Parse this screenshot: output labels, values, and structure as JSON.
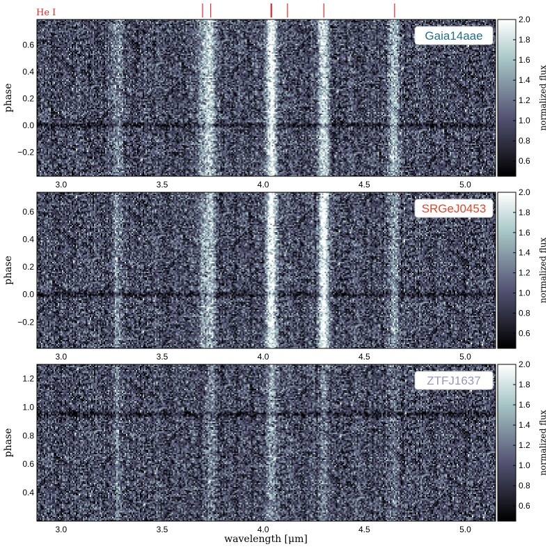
{
  "figure": {
    "xlabel": "wavelength [μm]",
    "ylabel": "phase",
    "colorbar_label": "normalized flux",
    "line_marker_label": "He I",
    "line_marker_color": "#e8262b",
    "colormap": "bone",
    "colorbar_range": [
      0.45,
      2.0
    ]
  },
  "chart_data": [
    {
      "type": "heatmap",
      "title": "",
      "object": "Gaia14aae",
      "object_color": "#1f6f8b",
      "xlabel": "",
      "ylabel": "phase",
      "xlim": [
        2.88,
        5.15
      ],
      "ylim": [
        -0.38,
        0.79
      ],
      "xticks": [
        3.0,
        3.5,
        4.0,
        4.5,
        5.0
      ],
      "xtick_labels": [
        "3.0",
        "3.5",
        "4.0",
        "4.5",
        "5.0"
      ],
      "yticks": [
        -0.2,
        0.0,
        0.2,
        0.4,
        0.6
      ],
      "ytick_labels": [
        "−0.2",
        "0.0",
        "0.2",
        "0.4",
        "0.6"
      ],
      "colorbar_ticks": [
        0.6,
        0.8,
        1.0,
        1.2,
        1.4,
        1.6,
        1.8,
        2.0
      ],
      "colorbar_tick_labels": [
        "0.6",
        "0.8",
        "1.0",
        "1.2",
        "1.4",
        "1.6",
        "1.8",
        "2.0"
      ],
      "emission_lines_um": [
        {
          "center": 3.28,
          "strength": 0.35
        },
        {
          "center": 3.7,
          "strength": 0.4
        },
        {
          "center": 3.74,
          "strength": 0.6
        },
        {
          "center": 4.04,
          "strength": 1.0
        },
        {
          "center": 4.3,
          "strength": 0.8
        },
        {
          "center": 4.65,
          "strength": 0.6
        }
      ],
      "eclipse_phase": 0.0
    },
    {
      "type": "heatmap",
      "title": "",
      "object": "SRGeJ0453",
      "object_color": "#e8442a",
      "xlabel": "",
      "ylabel": "phase",
      "xlim": [
        2.88,
        5.15
      ],
      "ylim": [
        -0.39,
        0.74
      ],
      "xticks": [
        3.0,
        3.5,
        4.0,
        4.5,
        5.0
      ],
      "xtick_labels": [
        "3.0",
        "3.5",
        "4.0",
        "4.5",
        "5.0"
      ],
      "yticks": [
        -0.2,
        0.0,
        0.2,
        0.4,
        0.6
      ],
      "ytick_labels": [
        "−0.2",
        "0.0",
        "0.2",
        "0.4",
        "0.6"
      ],
      "colorbar_ticks": [
        0.6,
        0.8,
        1.0,
        1.2,
        1.4,
        1.6,
        1.8,
        2.0
      ],
      "colorbar_tick_labels": [
        "0.6",
        "0.8",
        "1.0",
        "1.2",
        "1.4",
        "1.6",
        "1.8",
        "2.0"
      ],
      "emission_lines_um": [
        {
          "center": 3.28,
          "strength": 0.35
        },
        {
          "center": 3.7,
          "strength": 0.35
        },
        {
          "center": 3.74,
          "strength": 0.55
        },
        {
          "center": 4.04,
          "strength": 1.0
        },
        {
          "center": 4.3,
          "strength": 1.0
        },
        {
          "center": 4.65,
          "strength": 0.45
        }
      ],
      "eclipse_phase": 0.0
    },
    {
      "type": "heatmap",
      "title": "",
      "object": "ZTFJ1637",
      "object_color": "#9b96c4",
      "xlabel": "wavelength [μm]",
      "ylabel": "phase",
      "xlim": [
        2.88,
        5.15
      ],
      "ylim": [
        0.2,
        1.3
      ],
      "xticks": [
        3.0,
        3.5,
        4.0,
        4.5,
        5.0
      ],
      "xtick_labels": [
        "3.0",
        "3.5",
        "4.0",
        "4.5",
        "5.0"
      ],
      "yticks": [
        0.4,
        0.6,
        0.8,
        1.0,
        1.2
      ],
      "ytick_labels": [
        "0.4",
        "0.6",
        "0.8",
        "1.0",
        "1.2"
      ],
      "colorbar_ticks": [
        0.6,
        0.8,
        1.0,
        1.2,
        1.4,
        1.6,
        1.8,
        2.0
      ],
      "colorbar_tick_labels": [
        "0.6",
        "0.8",
        "1.0",
        "1.2",
        "1.4",
        "1.6",
        "1.8",
        "2.0"
      ],
      "emission_lines_um": [
        {
          "center": 3.28,
          "strength": 0.25
        },
        {
          "center": 3.74,
          "strength": 0.3
        },
        {
          "center": 4.04,
          "strength": 0.45
        },
        {
          "center": 4.3,
          "strength": 0.25
        },
        {
          "center": 4.65,
          "strength": 0.2
        }
      ],
      "eclipse_phase": 0.95
    }
  ],
  "he_lines_um": [
    3.7,
    3.74,
    4.04,
    4.12,
    4.3,
    4.65
  ]
}
